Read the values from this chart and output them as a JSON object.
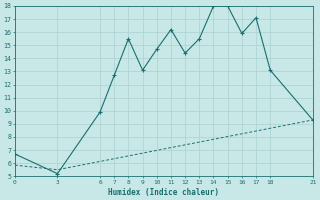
{
  "xlabel": "Humidex (Indice chaleur)",
  "bg_color": "#c8e8e8",
  "grid_color": "#b0d4d4",
  "line_color": "#1a6e6e",
  "line1_x": [
    0,
    3,
    6,
    7,
    8,
    9,
    10,
    11,
    12,
    13,
    14,
    15,
    16,
    17,
    18,
    21
  ],
  "line1_y": [
    6.7,
    5.2,
    9.9,
    12.7,
    15.5,
    13.1,
    14.7,
    16.2,
    14.4,
    15.5,
    18.0,
    18.0,
    15.9,
    17.1,
    13.1,
    9.3
  ],
  "line2_x": [
    0,
    3,
    21
  ],
  "line2_y": [
    5.85,
    5.5,
    9.3
  ],
  "xticks": [
    0,
    3,
    6,
    7,
    8,
    9,
    10,
    11,
    12,
    13,
    14,
    15,
    16,
    17,
    18,
    21
  ],
  "yticks": [
    5,
    6,
    7,
    8,
    9,
    10,
    11,
    12,
    13,
    14,
    15,
    16,
    17,
    18
  ],
  "xlim": [
    0,
    21
  ],
  "ylim": [
    5,
    18
  ]
}
